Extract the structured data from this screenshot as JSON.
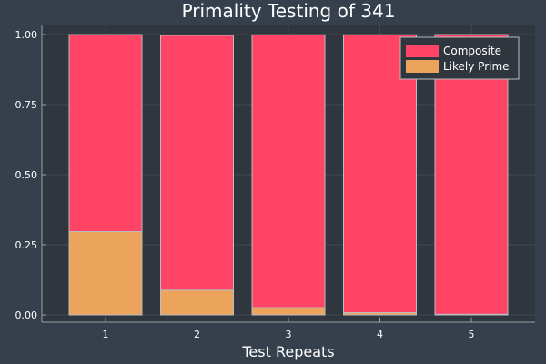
{
  "chart_data": {
    "type": "bar",
    "stacked": true,
    "title": "Primality Testing of 341",
    "xlabel": "Test Repeats",
    "ylabel": "",
    "categories": [
      "1",
      "2",
      "3",
      "4",
      "5"
    ],
    "ylim": [
      0,
      1.0
    ],
    "yticks": [
      0.0,
      0.25,
      0.5,
      0.75,
      1.0
    ],
    "ytick_labels": [
      "0.00",
      "0.25",
      "0.50",
      "0.75",
      "1.00"
    ],
    "grid": true,
    "legend_position": "top-right",
    "series": [
      {
        "name": "Composite",
        "color": "#ff4466",
        "bottoms": [
          0.297,
          0.088,
          0.026,
          0.008,
          0.002
        ],
        "tops": [
          0.703,
          0.909,
          0.973,
          0.991,
          0.998
        ]
      },
      {
        "name": "Likely Prime",
        "color": "#eca35b",
        "bottoms": [
          0,
          0,
          0,
          0,
          0
        ],
        "tops": [
          0.297,
          0.088,
          0.026,
          0.008,
          0.002
        ]
      }
    ],
    "colors": {
      "background": "#36404c",
      "plot_background": "#30363e",
      "axis": "#9aa0a8",
      "grid": "#414852",
      "text": "#ffffff",
      "bar_edge": "#b9bcc2"
    }
  }
}
